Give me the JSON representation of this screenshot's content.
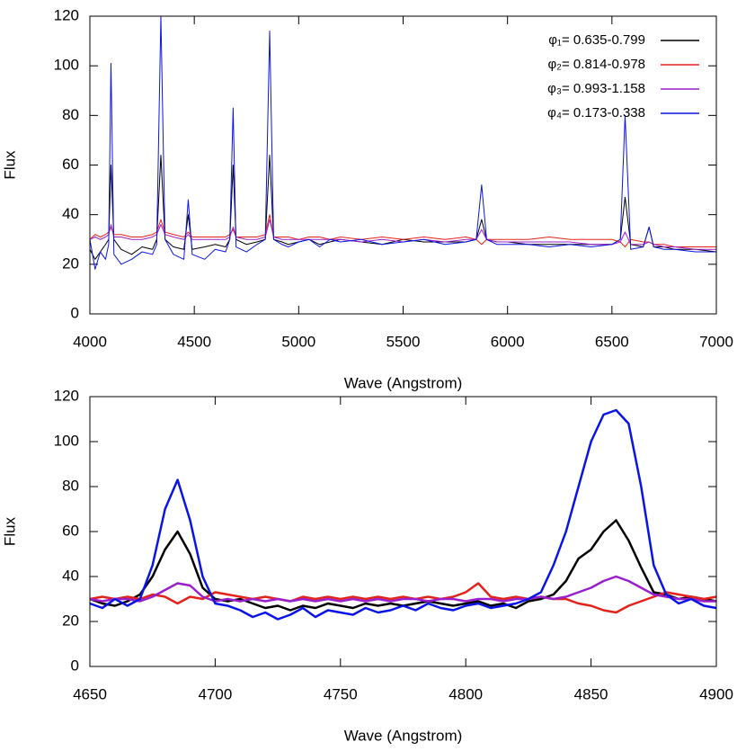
{
  "chart_data": [
    {
      "type": "line",
      "xlabel": "Wave (Angstrom)",
      "ylabel": "Flux",
      "x": [
        4000,
        4025,
        4050,
        4075,
        4090,
        4101,
        4115,
        4150,
        4200,
        4250,
        4300,
        4320,
        4340,
        4360,
        4400,
        4450,
        4471,
        4490,
        4550,
        4600,
        4650,
        4670,
        4686,
        4700,
        4750,
        4800,
        4840,
        4861,
        4880,
        4920,
        4950,
        5000,
        5050,
        5100,
        5150,
        5200,
        5300,
        5400,
        5500,
        5600,
        5700,
        5800,
        5850,
        5876,
        5900,
        5950,
        6000,
        6100,
        6200,
        6300,
        6400,
        6500,
        6540,
        6563,
        6590,
        6650,
        6678,
        6700,
        6750,
        6800,
        6900,
        7000
      ],
      "series": [
        {
          "name": "φ₁= 0.635-0.799",
          "color": "#000000",
          "values": [
            26,
            22,
            25,
            28,
            30,
            60,
            30,
            26,
            24,
            27,
            26,
            30,
            64,
            30,
            27,
            26,
            40,
            26,
            27,
            28,
            27,
            30,
            60,
            30,
            28,
            29,
            30,
            64,
            30,
            29,
            28,
            29,
            30,
            28,
            29,
            30,
            29,
            28,
            30,
            29,
            29,
            29,
            30,
            38,
            30,
            29,
            29,
            28,
            28,
            28,
            28,
            28,
            30,
            47,
            28,
            27,
            35,
            27,
            27,
            26,
            26,
            25
          ]
        },
        {
          "name": "φ₂= 0.814-0.978",
          "color": "#e3231b",
          "values": [
            30,
            32,
            31,
            32,
            33,
            35,
            32,
            32,
            31,
            31,
            32,
            33,
            38,
            33,
            32,
            31,
            33,
            31,
            31,
            31,
            31,
            32,
            34,
            31,
            31,
            31,
            32,
            40,
            31,
            31,
            31,
            30,
            31,
            31,
            30,
            31,
            30,
            31,
            30,
            31,
            30,
            31,
            30,
            28,
            30,
            30,
            30,
            30,
            31,
            30,
            30,
            30,
            29,
            27,
            30,
            29,
            29,
            28,
            28,
            27,
            27,
            27
          ]
        },
        {
          "name": "φ₃= 0.993-1.158",
          "color": "#9a1fcc",
          "values": [
            30,
            31,
            30,
            31,
            32,
            36,
            31,
            31,
            30,
            30,
            31,
            32,
            36,
            32,
            31,
            30,
            32,
            30,
            30,
            30,
            30,
            31,
            35,
            31,
            30,
            30,
            31,
            38,
            31,
            30,
            30,
            30,
            30,
            30,
            30,
            30,
            29,
            30,
            29,
            30,
            29,
            30,
            30,
            34,
            30,
            29,
            29,
            29,
            29,
            29,
            28,
            28,
            29,
            33,
            28,
            28,
            29,
            28,
            27,
            27,
            26,
            26
          ]
        },
        {
          "name": "φ₄= 0.173-0.338",
          "color": "#0a14e6",
          "values": [
            30,
            18,
            25,
            22,
            28,
            101,
            24,
            20,
            22,
            25,
            24,
            28,
            120,
            30,
            24,
            22,
            46,
            24,
            22,
            26,
            25,
            30,
            83,
            27,
            25,
            28,
            30,
            114,
            30,
            28,
            27,
            29,
            30,
            27,
            30,
            29,
            30,
            28,
            29,
            30,
            28,
            29,
            30,
            52,
            30,
            28,
            28,
            28,
            27,
            28,
            27,
            28,
            30,
            80,
            26,
            27,
            35,
            27,
            26,
            26,
            25,
            25
          ]
        }
      ],
      "xlim": [
        4000,
        7000
      ],
      "xticks": [
        4000,
        4500,
        5000,
        5500,
        6000,
        6500,
        7000
      ],
      "ylim": [
        0,
        120
      ],
      "yticks": [
        0,
        20,
        40,
        60,
        80,
        100,
        120
      ],
      "legend": "top-right"
    },
    {
      "type": "line",
      "xlabel": "Wave (Angstrom)",
      "ylabel": "Flux",
      "x": [
        4650,
        4655,
        4660,
        4665,
        4670,
        4675,
        4680,
        4685,
        4690,
        4695,
        4700,
        4705,
        4710,
        4715,
        4720,
        4725,
        4730,
        4735,
        4740,
        4745,
        4750,
        4755,
        4760,
        4765,
        4770,
        4775,
        4780,
        4785,
        4790,
        4795,
        4800,
        4805,
        4810,
        4815,
        4820,
        4825,
        4830,
        4835,
        4840,
        4845,
        4850,
        4855,
        4860,
        4865,
        4870,
        4875,
        4880,
        4885,
        4890,
        4895,
        4900
      ],
      "series": [
        {
          "color": "#000000",
          "values": [
            30,
            28,
            27,
            29,
            32,
            40,
            52,
            60,
            50,
            35,
            30,
            29,
            30,
            28,
            26,
            27,
            25,
            27,
            26,
            28,
            27,
            26,
            28,
            27,
            28,
            27,
            28,
            29,
            28,
            27,
            28,
            29,
            27,
            28,
            26,
            29,
            30,
            32,
            38,
            48,
            52,
            60,
            65,
            56,
            44,
            33,
            32,
            30,
            31,
            30,
            29
          ]
        },
        {
          "color": "#e3231b",
          "values": [
            30,
            31,
            30,
            31,
            30,
            32,
            31,
            28,
            31,
            30,
            33,
            32,
            31,
            30,
            31,
            30,
            29,
            31,
            30,
            31,
            30,
            31,
            30,
            31,
            30,
            31,
            30,
            31,
            30,
            31,
            33,
            37,
            31,
            30,
            31,
            30,
            31,
            30,
            30,
            28,
            27,
            25,
            24,
            27,
            29,
            31,
            33,
            32,
            31,
            30,
            31
          ]
        },
        {
          "color": "#9a1fcc",
          "values": [
            30,
            29,
            30,
            30,
            29,
            31,
            34,
            37,
            36,
            31,
            29,
            30,
            29,
            30,
            29,
            30,
            29,
            30,
            29,
            30,
            29,
            30,
            29,
            30,
            29,
            30,
            30,
            29,
            30,
            30,
            29,
            30,
            30,
            29,
            30,
            30,
            31,
            30,
            31,
            33,
            35,
            38,
            40,
            38,
            35,
            32,
            31,
            30,
            30,
            29,
            29
          ]
        },
        {
          "color": "#0a14e6",
          "values": [
            28,
            26,
            30,
            27,
            30,
            45,
            70,
            83,
            65,
            40,
            28,
            27,
            25,
            22,
            24,
            21,
            23,
            26,
            22,
            25,
            24,
            23,
            26,
            24,
            25,
            27,
            25,
            28,
            26,
            25,
            27,
            28,
            26,
            27,
            28,
            30,
            33,
            45,
            60,
            80,
            100,
            112,
            114,
            108,
            80,
            45,
            32,
            28,
            30,
            27,
            26
          ]
        }
      ],
      "xlim": [
        4650,
        4900
      ],
      "xticks": [
        4650,
        4700,
        4750,
        4800,
        4850,
        4900
      ],
      "ylim": [
        0,
        120
      ],
      "yticks": [
        0,
        20,
        40,
        60,
        80,
        100,
        120
      ]
    }
  ]
}
